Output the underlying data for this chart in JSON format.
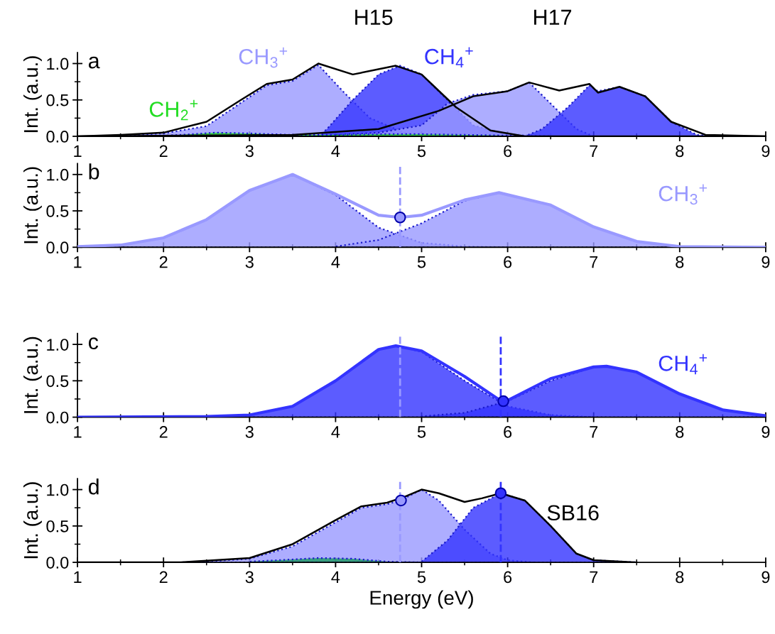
{
  "chart_data": [
    {
      "type": "area",
      "ylabel": "Int. (a.u.)",
      "xlim": [
        1,
        9
      ],
      "xticks": [
        1,
        2,
        3,
        4,
        5,
        6,
        7,
        8,
        9
      ],
      "ylim": [
        0,
        1.15
      ],
      "yticks": [
        {
          "value": 0,
          "label": "0.0"
        },
        {
          "value": 0.5,
          "label": "0.5"
        },
        {
          "value": 1,
          "label": "1.0"
        }
      ],
      "legend": false,
      "grid": false,
      "annotations": [
        "a",
        "H15",
        "H17"
      ],
      "series": [
        {
          "name": "CH$_{3}$$^{+}$",
          "color": "#9999ff",
          "x": [
            1.5,
            2,
            2.5,
            2.8,
            3.2,
            3.5,
            3.8,
            4.1,
            4.4,
            4.8,
            5
          ],
          "values": [
            0.01,
            0.04,
            0.14,
            0.38,
            0.7,
            0.76,
            0.98,
            0.6,
            0.25,
            0.05,
            0
          ]
        },
        {
          "name": "CH$_{4}$$^{+}$",
          "color": "#3333ff",
          "x": [
            3.8,
            3.9,
            4.2,
            4.5,
            4.75,
            5,
            5.3,
            5.6,
            6,
            6.5
          ],
          "values": [
            0,
            0.1,
            0.5,
            0.85,
            0.97,
            0.85,
            0.5,
            0.15,
            0.03,
            0
          ]
        },
        {
          "color": "#9999ff",
          "x": [
            4,
            4.5,
            5,
            5.3,
            5.6,
            6,
            6.25,
            6.5,
            6.8,
            7
          ],
          "values": [
            0.02,
            0.05,
            0.15,
            0.45,
            0.57,
            0.62,
            0.74,
            0.45,
            0.1,
            0
          ]
        },
        {
          "color": "#3333ff",
          "x": [
            6.2,
            6.4,
            6.7,
            6.95,
            7.05,
            7.3,
            7.6,
            7.9,
            8.2,
            8.5
          ],
          "values": [
            0,
            0.1,
            0.4,
            0.7,
            0.62,
            0.68,
            0.55,
            0.2,
            0.02,
            0
          ]
        },
        {
          "name": "CH$_{2}$$^{+}$",
          "color": "#22dd22",
          "x": [
            1.8,
            2.2,
            2.6,
            3,
            3.5,
            4,
            4.5,
            5,
            5.5,
            6,
            6.5
          ],
          "values": [
            0,
            0.02,
            0.05,
            0.04,
            0.02,
            0.02,
            0.03,
            0.03,
            0.02,
            0.01,
            0
          ]
        },
        {
          "type": "line",
          "color": "#000000",
          "x": [
            1,
            1.5,
            2,
            2.5,
            2.9,
            3.2,
            3.5,
            3.8,
            4.2,
            4.7,
            5,
            5.4,
            5.8,
            6.2,
            9
          ],
          "values": [
            0,
            0.02,
            0.05,
            0.2,
            0.5,
            0.72,
            0.78,
            1.0,
            0.85,
            0.97,
            0.85,
            0.4,
            0.08,
            0,
            0
          ]
        },
        {
          "type": "line",
          "color": "#000000",
          "x": [
            1,
            3.5,
            4.5,
            5.2,
            5.6,
            6,
            6.25,
            6.6,
            6.95,
            7.05,
            7.3,
            7.6,
            7.9,
            8.3,
            9
          ],
          "values": [
            0,
            0.02,
            0.1,
            0.35,
            0.55,
            0.62,
            0.74,
            0.63,
            0.72,
            0.6,
            0.68,
            0.55,
            0.2,
            0.02,
            0
          ]
        }
      ]
    },
    {
      "type": "area",
      "ylabel": "Int. (a.u.)",
      "xlim": [
        1,
        9
      ],
      "xticks": [
        1,
        2,
        3,
        4,
        5,
        6,
        7,
        8,
        9
      ],
      "ylim": [
        0,
        1.15
      ],
      "yticks": [
        {
          "value": 0,
          "label": "0.0"
        },
        {
          "value": 0.5,
          "label": "0.5"
        },
        {
          "value": 1,
          "label": "1.0"
        }
      ],
      "legend": false,
      "grid": false,
      "annotations": [
        "b"
      ],
      "ref_lines": [
        {
          "axis": "x",
          "value": 4.75,
          "color": "#9999ff",
          "line_style": "dashed"
        }
      ],
      "series": [
        {
          "color": "#9999ff",
          "x": [
            1,
            1.5,
            2,
            2.5,
            3,
            3.5,
            4,
            4.5,
            5,
            5.5,
            6
          ],
          "values": [
            0.01,
            0.03,
            0.13,
            0.38,
            0.78,
            1.0,
            0.72,
            0.27,
            0.06,
            0.01,
            0
          ]
        },
        {
          "color": "#9999ff",
          "x": [
            4,
            4.5,
            5,
            5.5,
            5.9,
            6.5,
            7,
            7.5,
            8,
            8.5,
            9
          ],
          "values": [
            0.01,
            0.1,
            0.33,
            0.64,
            0.75,
            0.58,
            0.28,
            0.08,
            0.01,
            0,
            0
          ]
        },
        {
          "type": "line",
          "name": "CH$_{3}$$^{+}$",
          "color": "#9999ff",
          "x": [
            1,
            1.5,
            2,
            2.5,
            3,
            3.5,
            4,
            4.5,
            4.75,
            5,
            5.5,
            5.9,
            6.5,
            7,
            7.5,
            8,
            9
          ],
          "values": [
            0.01,
            0.03,
            0.13,
            0.38,
            0.78,
            1.0,
            0.73,
            0.44,
            0.41,
            0.44,
            0.65,
            0.75,
            0.58,
            0.28,
            0.08,
            0.01,
            0
          ]
        },
        {
          "type": "scatter",
          "marker": "circle",
          "color": "#9999ff",
          "x": [
            4.75
          ],
          "values": [
            0.41
          ]
        }
      ]
    },
    {
      "type": "area",
      "ylabel": "Int. (a.u.)",
      "xlim": [
        1,
        9
      ],
      "xticks": [
        1,
        2,
        3,
        4,
        5,
        6,
        7,
        8,
        9
      ],
      "ylim": [
        0,
        1.15
      ],
      "yticks": [
        {
          "value": 0,
          "label": "0.0"
        },
        {
          "value": 0.5,
          "label": "0.5"
        },
        {
          "value": 1,
          "label": "1.0"
        }
      ],
      "legend": false,
      "grid": false,
      "annotations": [
        "c"
      ],
      "ref_lines": [
        {
          "axis": "x",
          "value": 4.75,
          "color": "#9999ff",
          "line_style": "dashed"
        },
        {
          "axis": "x",
          "value": 5.92,
          "color": "#3333ff",
          "line_style": "dashed"
        }
      ],
      "series": [
        {
          "color": "#3333ff",
          "x": [
            1,
            2.5,
            3,
            3.5,
            4,
            4.5,
            4.7,
            5,
            5.5,
            6,
            6.5,
            7
          ],
          "values": [
            0,
            0.01,
            0.03,
            0.15,
            0.5,
            0.93,
            0.98,
            0.9,
            0.5,
            0.15,
            0.03,
            0
          ]
        },
        {
          "color": "#3333ff",
          "x": [
            5,
            5.5,
            6,
            6.5,
            7,
            7.15,
            7.5,
            8,
            8.5,
            9
          ],
          "values": [
            0.01,
            0.06,
            0.22,
            0.5,
            0.69,
            0.7,
            0.62,
            0.32,
            0.1,
            0.02
          ]
        },
        {
          "type": "line",
          "name": "CH$_{4}$$^{+}$",
          "color": "#3333ff",
          "x": [
            1,
            2.5,
            3,
            3.5,
            4,
            4.5,
            4.7,
            5,
            5.5,
            5.95,
            6.5,
            7,
            7.15,
            7.5,
            8,
            8.5,
            9
          ],
          "values": [
            0,
            0.01,
            0.03,
            0.15,
            0.5,
            0.93,
            0.98,
            0.91,
            0.56,
            0.2,
            0.53,
            0.69,
            0.7,
            0.62,
            0.32,
            0.1,
            0.02
          ]
        },
        {
          "type": "scatter",
          "marker": "circle",
          "color": "#3333ff",
          "x": [
            5.95
          ],
          "values": [
            0.22
          ]
        }
      ]
    },
    {
      "type": "area",
      "ylabel": "Int. (a.u.)",
      "xlabel": "Energy (eV)",
      "xlim": [
        1,
        9
      ],
      "xticks": [
        1,
        2,
        3,
        4,
        5,
        6,
        7,
        8,
        9
      ],
      "ylim": [
        0,
        1.15
      ],
      "yticks": [
        {
          "value": 0,
          "label": "0.0"
        },
        {
          "value": 0.5,
          "label": "0.5"
        },
        {
          "value": 1,
          "label": "1.0"
        }
      ],
      "legend": false,
      "grid": false,
      "annotations": [
        "d",
        "SB16"
      ],
      "ref_lines": [
        {
          "axis": "x",
          "value": 4.75,
          "color": "#9999ff",
          "line_style": "dashed"
        },
        {
          "axis": "x",
          "value": 5.92,
          "color": "#3333ff",
          "line_style": "dashed"
        }
      ],
      "series": [
        {
          "color": "#9999ff",
          "x": [
            2.2,
            2.5,
            3,
            3.5,
            4,
            4.3,
            4.6,
            4.75,
            5,
            5.2,
            5.5,
            5.8,
            6,
            6.3
          ],
          "values": [
            0,
            0.01,
            0.05,
            0.22,
            0.55,
            0.75,
            0.8,
            0.85,
            1.0,
            0.85,
            0.45,
            0.12,
            0.03,
            0
          ]
        },
        {
          "color": "#3333ff",
          "x": [
            5,
            5.3,
            5.6,
            5.92,
            6.2,
            6.5,
            6.8,
            7,
            7.5
          ],
          "values": [
            0.01,
            0.3,
            0.75,
            0.95,
            0.85,
            0.5,
            0.12,
            0.03,
            0
          ]
        },
        {
          "color": "#1a9a60",
          "x": [
            3,
            3.5,
            3.8,
            4.2,
            4.6,
            5
          ],
          "values": [
            0.01,
            0.04,
            0.06,
            0.05,
            0.01,
            0
          ]
        },
        {
          "type": "line",
          "color": "#000000",
          "x": [
            1,
            2.2,
            3,
            3.5,
            4,
            4.3,
            4.6,
            4.8,
            5,
            5.2,
            5.5,
            5.7,
            5.92,
            6.2,
            6.5,
            6.8,
            7,
            7.5
          ],
          "values": [
            0,
            0,
            0.06,
            0.25,
            0.58,
            0.77,
            0.82,
            0.9,
            1.0,
            0.95,
            0.83,
            0.88,
            0.95,
            0.85,
            0.5,
            0.12,
            0.03,
            0
          ]
        },
        {
          "type": "scatter",
          "marker": "circle",
          "color": "#9999ff",
          "x": [
            4.76
          ],
          "values": [
            0.85
          ]
        },
        {
          "type": "scatter",
          "marker": "circle",
          "color": "#3333ff",
          "x": [
            5.92
          ],
          "values": [
            0.95
          ]
        }
      ]
    }
  ]
}
